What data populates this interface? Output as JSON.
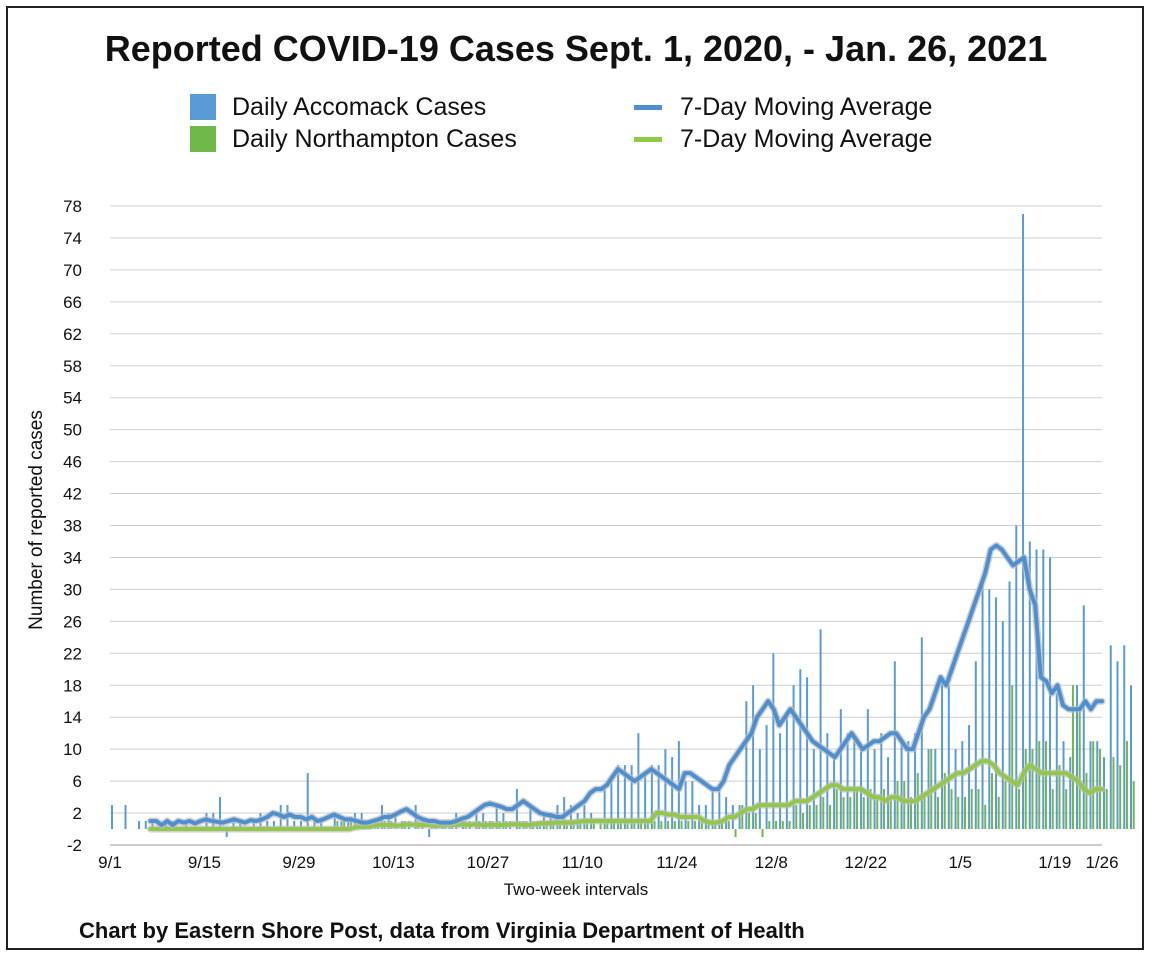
{
  "colors": {
    "accomack": "#5b9bd5",
    "accomack_line": "#4e8fd0",
    "northampton": "#70b84a",
    "northampton_line": "#92c84a",
    "grid": "#cfcfcf",
    "line_shadow": "#bcbcbc"
  },
  "legend": [
    {
      "label": "Daily Accomack Cases",
      "kind": "bar",
      "color": "#5b9bd5"
    },
    {
      "label": "Daily Northampton Cases",
      "kind": "bar",
      "color": "#70b84a"
    },
    {
      "label": "7-Day Moving Average",
      "kind": "line",
      "color": "#4e8fd0"
    },
    {
      "label": "7-Day Moving Average",
      "kind": "line",
      "color": "#92c84a"
    }
  ],
  "footer": {
    "credit": "Chart by Eastern Shore Post, data from Virginia Department of Health"
  },
  "chart_data": {
    "type": "bar",
    "title": "Reported COVID-19 Cases Sept. 1, 2020, - Jan. 26, 2021",
    "xlabel": "Two-week intervals",
    "ylabel": "Number of reported cases",
    "ylim": [
      -2,
      78
    ],
    "yticks": [
      -2,
      2,
      6,
      10,
      14,
      18,
      22,
      26,
      30,
      34,
      38,
      42,
      46,
      50,
      54,
      58,
      62,
      66,
      70,
      74,
      78
    ],
    "x_tick_labels": [
      "9/1",
      "9/15",
      "9/29",
      "10/13",
      "10/27",
      "11/10",
      "11/24",
      "12/8",
      "12/22",
      "1/5",
      "1/19",
      "1/26"
    ],
    "x_tick_day_index": [
      0,
      14,
      28,
      42,
      56,
      70,
      84,
      98,
      112,
      126,
      140,
      147
    ],
    "grid": true,
    "legend_position": "top",
    "series": [
      {
        "name": "Daily Accomack Cases",
        "type": "bar",
        "values": [
          3,
          0,
          3,
          0,
          1,
          1,
          1,
          1,
          1,
          1,
          0,
          1,
          0,
          0,
          2,
          2,
          4,
          -1,
          1,
          1,
          0,
          1,
          2,
          1,
          1,
          3,
          3,
          1,
          1,
          7,
          1,
          1,
          0,
          2,
          1,
          1,
          2,
          2,
          1,
          1,
          3,
          2,
          2,
          1,
          1,
          3,
          1,
          -1,
          1,
          1,
          1,
          2,
          1,
          1,
          2,
          2,
          1,
          3,
          2,
          1,
          5,
          1,
          3,
          1,
          2,
          2,
          3,
          4,
          3,
          2,
          3,
          2,
          0,
          5,
          6,
          8,
          8,
          8,
          12,
          7,
          8,
          8,
          10,
          9,
          11,
          6,
          6,
          3,
          3,
          5,
          5,
          4,
          3,
          3,
          16,
          18,
          10,
          13,
          22,
          12,
          14,
          18,
          20,
          19,
          10,
          25,
          12,
          9,
          15,
          12,
          11,
          10,
          15,
          10,
          12,
          9,
          21,
          11,
          11,
          12,
          24,
          10,
          10,
          19,
          18,
          10,
          11,
          13,
          21,
          31,
          30,
          29,
          26,
          31,
          38,
          77,
          36,
          35,
          35,
          34,
          17,
          11,
          9,
          18,
          28,
          11,
          11,
          9,
          23,
          21,
          23,
          18
        ]
      },
      {
        "name": "Daily Northampton Cases",
        "type": "bar",
        "values": [
          0,
          0,
          0,
          0,
          0,
          0,
          0,
          0,
          0,
          0,
          0,
          0,
          0,
          0,
          0,
          0,
          0,
          0,
          0,
          0,
          0,
          0,
          0,
          0,
          0,
          0,
          0,
          0,
          0,
          0,
          0,
          0,
          0,
          1,
          1,
          1,
          1,
          1,
          1,
          1,
          1,
          1,
          0,
          1,
          0,
          1,
          0,
          1,
          0,
          1,
          1,
          0,
          1,
          0,
          1,
          1,
          1,
          1,
          1,
          0,
          1,
          1,
          1,
          1,
          1,
          1,
          1,
          1,
          1,
          1,
          1,
          1,
          1,
          1,
          1,
          1,
          1,
          1,
          1,
          1,
          1,
          1,
          1,
          1,
          1,
          1,
          1,
          1,
          1,
          1,
          1,
          1,
          -1,
          3,
          2,
          2,
          -1,
          1,
          1,
          1,
          1,
          3,
          2,
          3,
          3,
          4,
          3,
          5,
          4,
          4,
          5,
          4,
          5,
          4,
          5,
          4,
          6,
          6,
          4,
          7,
          4,
          10,
          4,
          7,
          5,
          4,
          4,
          5,
          5,
          3,
          7,
          4,
          6,
          18,
          5,
          10,
          10,
          11,
          11,
          5,
          8,
          5,
          18,
          15,
          7,
          11,
          10,
          5,
          9,
          8,
          11,
          6
        ]
      },
      {
        "name": "7-Day Moving Average",
        "type": "line",
        "start_index": 6,
        "values": [
          1,
          1,
          0.5,
          1,
          0.5,
          1,
          0.8,
          1,
          0.7,
          1,
          1.2,
          1,
          0.9,
          0.8,
          1,
          1.2,
          1,
          0.8,
          1.1,
          1,
          1.2,
          1.5,
          2,
          1.8,
          1.5,
          1.8,
          1.5,
          1.5,
          1.2,
          1.5,
          1,
          1.2,
          1.5,
          1.8,
          1.5,
          1.2,
          1.2,
          1,
          0.8,
          0.8,
          1,
          1.2,
          1.5,
          1.5,
          1.8,
          2.2,
          2.5,
          2,
          1.5,
          1.2,
          1,
          1,
          0.8,
          0.8,
          0.8,
          1,
          1.3,
          1.5,
          2,
          2.5,
          3,
          3.2,
          3,
          2.8,
          2.5,
          2.5,
          3,
          3.5,
          3,
          2.5,
          2,
          1.8,
          1.7,
          1.5,
          1.5,
          2,
          2.5,
          3,
          3.5,
          4.5,
          5,
          5,
          5.5,
          6.5,
          7.5,
          7,
          6.5,
          6,
          6.5,
          7,
          7.5,
          7,
          6.5,
          6,
          5.5,
          5,
          7,
          7,
          6.5,
          6,
          5.5,
          5,
          5,
          6,
          8,
          9,
          10,
          11,
          12,
          14,
          15,
          16,
          15,
          13,
          14,
          15,
          14,
          13,
          12,
          11,
          10.5,
          10,
          9.5,
          9,
          10,
          11,
          12,
          11,
          10,
          10.5,
          11,
          11,
          11.5,
          12,
          12,
          11,
          10,
          10,
          12,
          14,
          15,
          17,
          19,
          18,
          20,
          22,
          24,
          26,
          28,
          30,
          32,
          35,
          35.5,
          35,
          34,
          33,
          33.5,
          34,
          30,
          28,
          19,
          18.5,
          17,
          18,
          15.5,
          15,
          15,
          15,
          16,
          15,
          16,
          16
        ]
      },
      {
        "name": "7-Day Moving Average",
        "type": "line",
        "start_index": 6,
        "values": [
          0,
          0,
          0,
          0,
          0,
          0,
          0,
          0,
          0,
          0,
          0,
          0,
          0,
          0,
          0,
          0,
          0,
          0,
          0,
          0,
          0,
          0,
          0,
          0,
          0,
          0,
          0,
          0,
          0,
          0,
          0,
          0,
          0,
          0,
          0.2,
          0.3,
          0.3,
          0.4,
          0.5,
          0.5,
          0.5,
          0.4,
          0.5,
          0.6,
          0.5,
          0.5,
          0.5,
          0.4,
          0.4,
          0.5,
          0.5,
          0.5,
          0.6,
          0.5,
          0.6,
          0.5,
          0.5,
          0.5,
          0.5,
          0.5,
          0.6,
          0.6,
          0.5,
          0.5,
          0.6,
          0.7,
          0.7,
          0.8,
          0.8,
          0.8,
          0.8,
          0.9,
          1,
          1,
          1,
          1,
          1,
          1,
          1,
          1,
          1,
          1,
          1,
          1,
          2,
          2,
          1.8,
          1.8,
          1.5,
          1.5,
          1.5,
          1.5,
          1,
          0.8,
          0.8,
          1,
          1.5,
          1.5,
          2,
          2.5,
          2.5,
          3,
          3,
          3,
          3,
          3,
          3,
          3.5,
          3.5,
          3.5,
          4,
          4.5,
          5,
          5.5,
          5.5,
          5,
          5,
          5,
          5,
          4.5,
          4,
          4,
          3.5,
          4,
          4,
          3.5,
          3.5,
          3.5,
          4,
          4.5,
          5,
          5.5,
          6,
          6.5,
          7,
          7,
          7.5,
          8,
          8.5,
          8.5,
          8,
          7,
          6.5,
          6,
          5.5,
          7,
          8,
          7.5,
          7,
          7,
          7,
          7,
          7,
          6.5,
          6,
          5,
          4.5,
          5,
          5
        ]
      }
    ]
  }
}
